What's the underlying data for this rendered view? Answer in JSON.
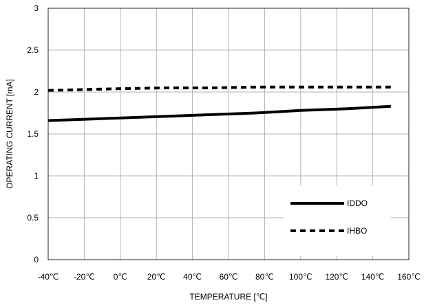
{
  "chart_data": {
    "type": "line",
    "xlabel": "TEMPERATURE [℃]",
    "ylabel": "OPERATING CURRENT [mA]",
    "x_ticks": [
      -40,
      -20,
      0,
      20,
      40,
      60,
      80,
      100,
      120,
      140,
      160
    ],
    "x_tick_labels": [
      "-40℃",
      "-20℃",
      "0℃",
      "20℃",
      "40℃",
      "60℃",
      "80℃",
      "100℃",
      "120℃",
      "140℃",
      "160℃"
    ],
    "y_ticks": [
      0,
      0.5,
      1,
      1.5,
      2,
      2.5,
      3
    ],
    "y_tick_labels": [
      "0",
      "0.5",
      "1",
      "1.5",
      "2",
      "2.5",
      "3"
    ],
    "xlim": [
      -40,
      160
    ],
    "ylim": [
      0,
      3
    ],
    "grid": true,
    "legend_position": "bottom-right",
    "series": [
      {
        "name": "IDDO",
        "style": "solid",
        "color": "#000000",
        "x": [
          -40,
          0,
          25,
          50,
          75,
          100,
          125,
          150
        ],
        "y": [
          1.66,
          1.69,
          1.71,
          1.73,
          1.75,
          1.78,
          1.8,
          1.83
        ]
      },
      {
        "name": "IHBO",
        "style": "dashed",
        "color": "#000000",
        "x": [
          -40,
          0,
          25,
          50,
          75,
          100,
          125,
          150
        ],
        "y": [
          2.02,
          2.04,
          2.05,
          2.05,
          2.06,
          2.06,
          2.06,
          2.06
        ]
      }
    ]
  }
}
